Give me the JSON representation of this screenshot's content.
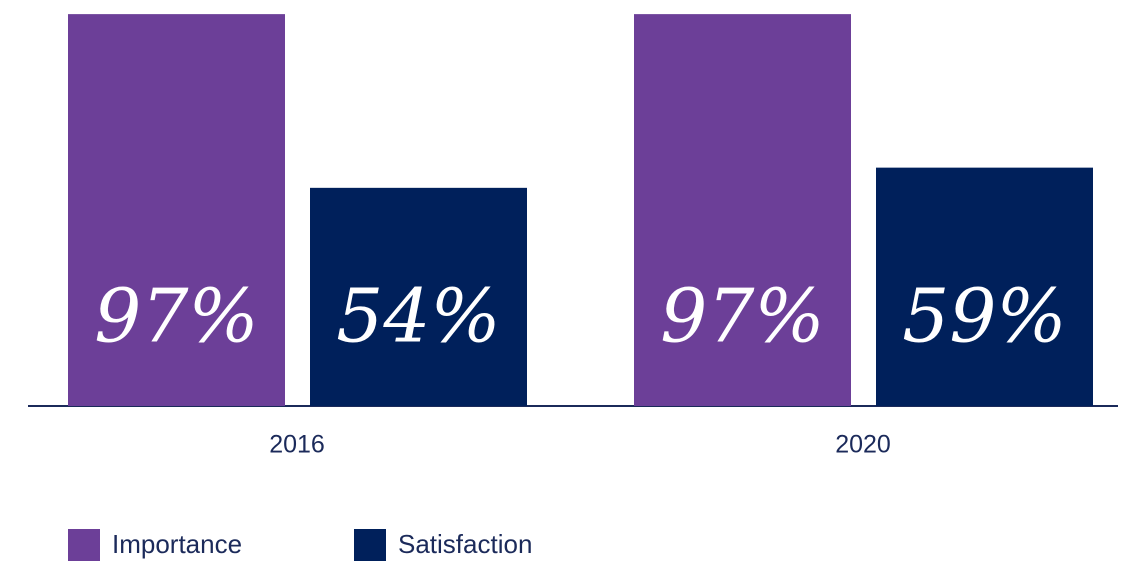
{
  "chart_data": {
    "type": "bar",
    "categories": [
      "2016",
      "2020"
    ],
    "series": [
      {
        "name": "Importance",
        "color": "#6c3f98",
        "values": [
          97,
          97
        ],
        "value_labels": [
          "97%",
          "97%"
        ]
      },
      {
        "name": "Satisfaction",
        "color": "#00205b",
        "values": [
          54,
          59
        ],
        "value_labels": [
          "54%",
          "59%"
        ]
      }
    ],
    "ylim": [
      0,
      100
    ]
  }
}
